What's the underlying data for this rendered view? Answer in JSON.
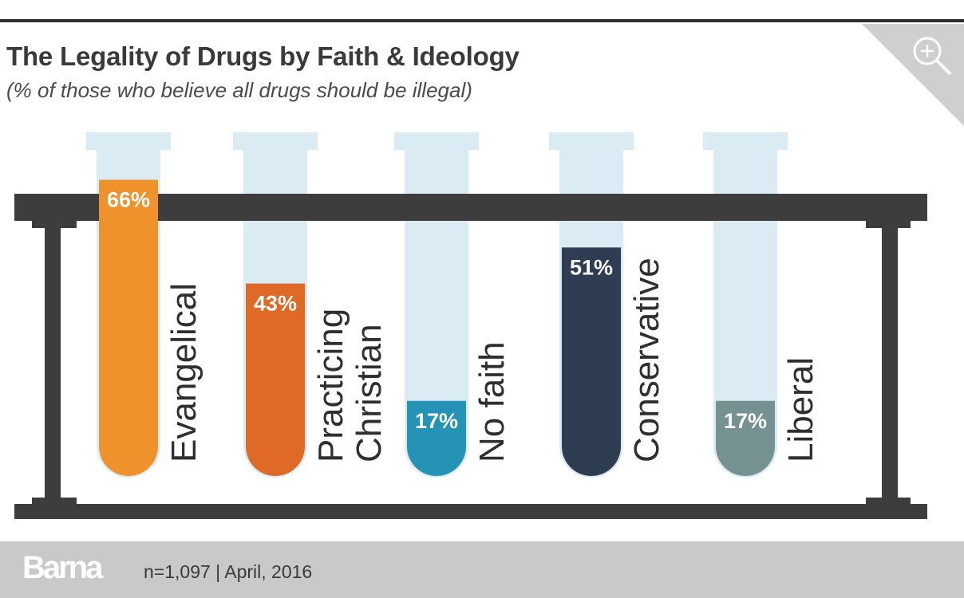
{
  "header": {
    "title": "The Legality of Drugs by Faith & Ideology",
    "subtitle": "(% of those who believe all drugs should be illegal)"
  },
  "icons": {
    "zoom": "zoom-in-icon"
  },
  "chart_data": {
    "type": "bar",
    "title": "The Legality of Drugs by Faith & Ideology",
    "subtitle": "(% of those who believe all drugs should be illegal)",
    "categories": [
      "Evangelical",
      "Practicing Christian",
      "No faith",
      "Conservative",
      "Liberal"
    ],
    "category_label_lines": [
      [
        "Evangelical"
      ],
      [
        "Practicing",
        "Christian"
      ],
      [
        "No faith"
      ],
      [
        "Conservative"
      ],
      [
        "Liberal"
      ]
    ],
    "values": [
      66,
      43,
      17,
      51,
      17
    ],
    "value_labels": [
      "66%",
      "43%",
      "17%",
      "51%",
      "17%"
    ],
    "colors": [
      "#f0922b",
      "#df6a25",
      "#2493b5",
      "#2e3d52",
      "#759191"
    ],
    "ylim": [
      0,
      100
    ],
    "xlabel": "",
    "ylabel": ""
  },
  "colors": {
    "tube": "#dbebf4",
    "rack": "#3d3d3d",
    "footer_bg": "#c9c9c9",
    "text": "#3a3a3a"
  },
  "footer": {
    "brand": "Barna",
    "note": "n=1,097  |  April, 2016"
  }
}
